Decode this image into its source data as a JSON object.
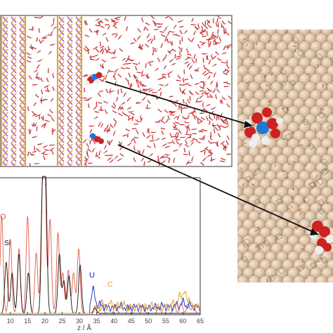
{
  "figure": {
    "colors": {
      "oxygen": "#cc2222",
      "hydrogen": "#f2f2f2",
      "nitrogen": "#1f77d6",
      "silicon": "#d9a640",
      "uranium": "#b04fc0",
      "surface": "#dcc3a8",
      "red_trace": "#e05a4a",
      "black_trace": "#111111",
      "blue_trace": "#1030c0",
      "orange_trace": "#e29b2a",
      "frame": "#333333",
      "axis_text": "#444444"
    }
  },
  "chart_data": {
    "type": "line",
    "xlabel": "z / Å",
    "xlim": [
      7,
      65
    ],
    "x_ticks": [
      10,
      15,
      20,
      25,
      30,
      35,
      40,
      45,
      50,
      55,
      60,
      65
    ],
    "annotations": [
      "O",
      "Si",
      "U",
      "C"
    ],
    "series": [
      {
        "id": "red",
        "color": "#e05a4a",
        "x": [
          7.5,
          10.0,
          12.5,
          15.0,
          17.5,
          19.2,
          20.0,
          21.5,
          23.8,
          25.2,
          26.8,
          28.3,
          29.8,
          34.5,
          36.5,
          40.5,
          44.5,
          48.5,
          53.0,
          57.5,
          59.5,
          61.5,
          63.0
        ],
        "y": [
          0.72,
          0.55,
          0.48,
          0.72,
          0.45,
          0.76,
          1.0,
          0.7,
          0.6,
          0.3,
          0.32,
          0.3,
          0.48,
          0.05,
          0.1,
          0.06,
          0.06,
          0.05,
          0.05,
          0.06,
          0.08,
          0.07,
          0.06
        ]
      },
      {
        "id": "black",
        "color": "#111111",
        "x": [
          8.8,
          10.5,
          12.5,
          15.2,
          19.4,
          20.2,
          24.2,
          25.5,
          27.0,
          30.2,
          34.5
        ],
        "y": [
          0.38,
          0.3,
          0.44,
          0.3,
          1.0,
          0.96,
          0.44,
          0.24,
          0.28,
          0.36,
          0.04
        ]
      },
      {
        "id": "blue",
        "color": "#1030c0",
        "x": [
          34.0,
          36.0,
          38.0,
          40.0,
          42.0,
          44.0,
          46.0,
          48.0,
          50.0,
          52.0,
          54.0,
          56.0,
          58.0,
          60.0,
          62.0,
          64.0
        ],
        "y": [
          0.18,
          0.07,
          0.05,
          0.05,
          0.06,
          0.04,
          0.05,
          0.05,
          0.04,
          0.05,
          0.06,
          0.05,
          0.07,
          0.09,
          0.07,
          0.05
        ]
      },
      {
        "id": "orange",
        "color": "#e29b2a",
        "x": [
          35.0,
          37.0,
          39.0,
          41.0,
          43.0,
          45.0,
          47.0,
          49.0,
          51.0,
          53.0,
          55.0,
          57.0,
          59.0,
          60.5,
          62.0,
          64.0
        ],
        "y": [
          0.04,
          0.06,
          0.08,
          0.06,
          0.07,
          0.05,
          0.06,
          0.05,
          0.06,
          0.05,
          0.06,
          0.08,
          0.13,
          0.15,
          0.09,
          0.06
        ]
      }
    ]
  }
}
